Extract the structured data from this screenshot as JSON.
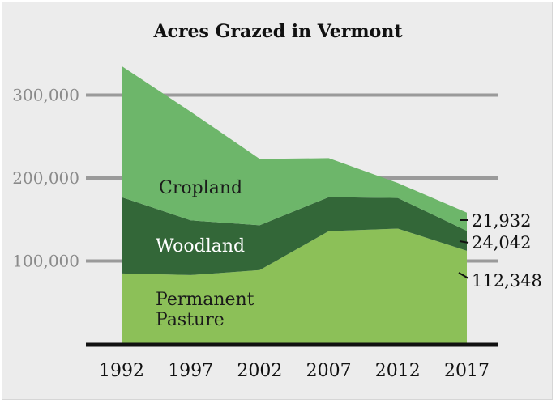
{
  "chart_data": {
    "type": "area",
    "title": "Acres Grazed in Vermont",
    "xlabel": "",
    "ylabel": "",
    "categories": [
      "1992",
      "1997",
      "2002",
      "2007",
      "2012",
      "2017"
    ],
    "ylim": [
      0,
      340000
    ],
    "yticks": [
      {
        "value": 100000,
        "label": "100,000"
      },
      {
        "value": 200000,
        "label": "200,000"
      },
      {
        "value": 300000,
        "label": "300,000"
      }
    ],
    "stacked": true,
    "series": [
      {
        "name": "Permanent Pasture",
        "label_lines": [
          "Permanent",
          "Pasture"
        ],
        "values": [
          85000,
          83000,
          89000,
          136000,
          139000,
          112348
        ],
        "color": "#8cc058",
        "label_color": "#1a1a1a",
        "end_label": "112,348"
      },
      {
        "name": "Woodland",
        "label_lines": [
          "Woodland"
        ],
        "values": [
          92000,
          66000,
          54000,
          41000,
          37000,
          24042
        ],
        "color": "#336738",
        "label_color": "#ffffff",
        "end_label": "24,042"
      },
      {
        "name": "Cropland",
        "label_lines": [
          "Cropland"
        ],
        "values": [
          158000,
          131000,
          80000,
          47000,
          18000,
          21932
        ],
        "color": "#6db66a",
        "label_color": "#1a1a1a",
        "end_label": "21,932"
      }
    ],
    "grid": true
  }
}
